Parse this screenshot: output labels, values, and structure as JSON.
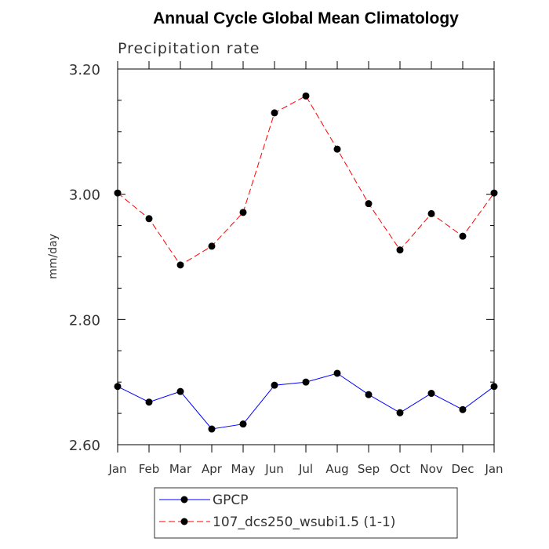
{
  "chart_data": {
    "type": "line",
    "title": "Annual Cycle Global Mean Climatology",
    "subtitle": "Precipitation rate",
    "xlabel": "",
    "ylabel": "mm/day",
    "categories": [
      "Jan",
      "Feb",
      "Mar",
      "Apr",
      "May",
      "Jun",
      "Jul",
      "Aug",
      "Sep",
      "Oct",
      "Nov",
      "Dec",
      "Jan"
    ],
    "ylim": [
      2.6,
      3.2
    ],
    "yticks_major": [
      "2.60",
      "2.80",
      "3.00",
      "3.20"
    ],
    "yticks_minor_step": 0.05,
    "grid": false,
    "legend_position": "bottom-center",
    "series": [
      {
        "name": "GPCP",
        "color": "#0000ff",
        "dash": "solid",
        "marker": "filled-circle",
        "values": [
          2.693,
          2.668,
          2.685,
          2.625,
          2.633,
          2.695,
          2.7,
          2.714,
          2.68,
          2.651,
          2.682,
          2.656,
          2.693
        ]
      },
      {
        "name": "107_dcs250_wsubi1.5 (1-1)",
        "color": "#ff0000",
        "dash": "dashed",
        "marker": "filled-circle",
        "values": [
          3.002,
          2.961,
          2.887,
          2.917,
          2.971,
          3.13,
          3.157,
          3.072,
          2.985,
          2.911,
          2.969,
          2.933,
          3.002
        ]
      }
    ]
  }
}
